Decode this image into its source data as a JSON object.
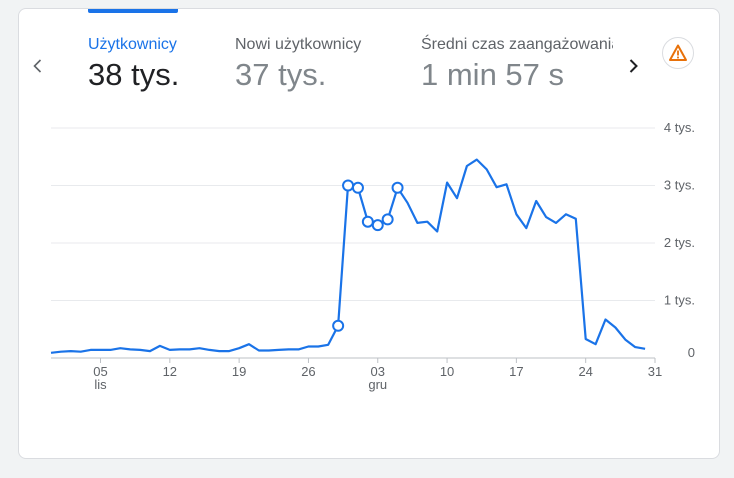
{
  "tabs": [
    {
      "label": "Użytkownicy",
      "value": "38 tys.",
      "active": true
    },
    {
      "label": "Nowi użytkownicy",
      "value": "37 tys.",
      "active": false
    },
    {
      "label": "Średni czas zaangażowania",
      "value": "1 min 57 s",
      "active": false
    }
  ],
  "icons": {
    "prev": "chevron-left-icon",
    "next": "chevron-right-icon",
    "alert": "warning-icon"
  },
  "colors": {
    "accent": "#1a73e8",
    "line": "#1a73e8",
    "warning": "#e8710a"
  },
  "chart_data": {
    "type": "line",
    "y_ticks": [
      "4 tys.",
      "3 tys.",
      "2 tys.",
      "1 tys.",
      "0"
    ],
    "y_tick_values": [
      4000,
      3000,
      2000,
      1000,
      0
    ],
    "ylim": [
      0,
      4000
    ],
    "x_ticks": [
      {
        "day": "05",
        "month": "lis",
        "index": 5
      },
      {
        "day": "12",
        "month": "",
        "index": 12
      },
      {
        "day": "19",
        "month": "",
        "index": 19
      },
      {
        "day": "26",
        "month": "",
        "index": 26
      },
      {
        "day": "03",
        "month": "gru",
        "index": 33
      },
      {
        "day": "10",
        "month": "",
        "index": 40
      },
      {
        "day": "17",
        "month": "",
        "index": 47
      },
      {
        "day": "24",
        "month": "",
        "index": 54
      },
      {
        "day": "31",
        "month": "",
        "index": 61
      }
    ],
    "x_range": [
      0,
      61
    ],
    "grid": true,
    "series": [
      {
        "name": "",
        "values": [
          90,
          110,
          120,
          110,
          140,
          140,
          140,
          170,
          150,
          140,
          120,
          210,
          140,
          150,
          150,
          170,
          140,
          120,
          120,
          170,
          240,
          130,
          130,
          140,
          150,
          150,
          200,
          200,
          230,
          560,
          3000,
          2960,
          2370,
          2310,
          2410,
          2960,
          2700,
          2350,
          2370,
          2200,
          3050,
          2780,
          3340,
          3450,
          3280,
          2970,
          3020,
          2500,
          2260,
          2730,
          2450,
          2350,
          2500,
          2420,
          330,
          240,
          670,
          530,
          320,
          190,
          160
        ],
        "markers": [
          29,
          30,
          31,
          32,
          33,
          34,
          35
        ]
      }
    ]
  }
}
